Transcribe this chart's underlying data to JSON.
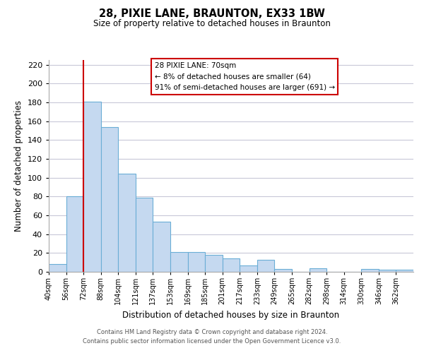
{
  "title": "28, PIXIE LANE, BRAUNTON, EX33 1BW",
  "subtitle": "Size of property relative to detached houses in Braunton",
  "xlabel": "Distribution of detached houses by size in Braunton",
  "ylabel": "Number of detached properties",
  "bin_labels": [
    "40sqm",
    "56sqm",
    "72sqm",
    "88sqm",
    "104sqm",
    "121sqm",
    "137sqm",
    "153sqm",
    "169sqm",
    "185sqm",
    "201sqm",
    "217sqm",
    "233sqm",
    "249sqm",
    "265sqm",
    "282sqm",
    "298sqm",
    "314sqm",
    "330sqm",
    "346sqm",
    "362sqm"
  ],
  "bar_heights": [
    8,
    80,
    181,
    154,
    104,
    79,
    53,
    21,
    21,
    18,
    14,
    7,
    13,
    3,
    0,
    4,
    0,
    0,
    3,
    2,
    2
  ],
  "bar_color": "#c5d9f0",
  "bar_edge_color": "#6aaed6",
  "property_line_x": 2,
  "property_line_color": "#cc0000",
  "annotation_title": "28 PIXIE LANE: 70sqm",
  "annotation_line1": "← 8% of detached houses are smaller (64)",
  "annotation_line2": "91% of semi-detached houses are larger (691) →",
  "annotation_box_color": "#ffffff",
  "annotation_box_edge_color": "#cc0000",
  "ylim": [
    0,
    225
  ],
  "yticks": [
    0,
    20,
    40,
    60,
    80,
    100,
    120,
    140,
    160,
    180,
    200,
    220
  ],
  "footer_line1": "Contains HM Land Registry data © Crown copyright and database right 2024.",
  "footer_line2": "Contains public sector information licensed under the Open Government Licence v3.0.",
  "background_color": "#ffffff",
  "grid_color": "#c8c8d8"
}
